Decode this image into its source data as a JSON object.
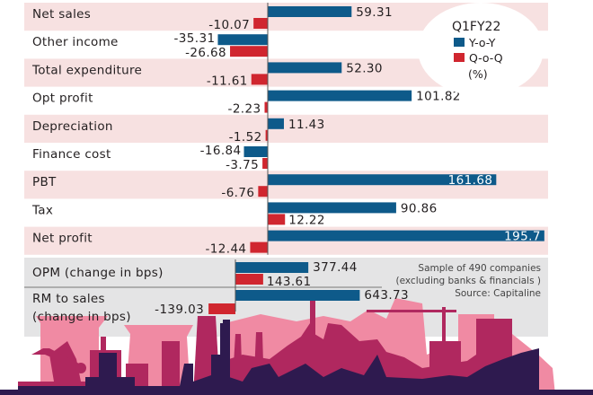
{
  "chart_data": [
    {
      "type": "bar",
      "orientation": "horizontal",
      "title": "Q1FY22",
      "unit_label": "(%)",
      "categories": [
        "Net sales",
        "Other income",
        "Total expenditure",
        "Opt profit",
        "Depreciation",
        "Finance cost",
        "PBT",
        "Tax",
        "Net profit"
      ],
      "series": [
        {
          "name": "Y-o-Y",
          "color": "#0e5a8a",
          "values": [
            59.31,
            -35.31,
            52.3,
            101.82,
            11.43,
            -16.84,
            161.68,
            90.86,
            195.7
          ]
        },
        {
          "name": "Q-o-Q",
          "color": "#d0262f",
          "values": [
            -10.07,
            -26.68,
            -11.61,
            -2.23,
            -1.52,
            -3.75,
            -6.76,
            12.22,
            -12.44
          ]
        }
      ],
      "value_labels": {
        "Y-o-Y": [
          "59.31",
          "-35.31",
          "52.30",
          "101.82",
          "11.43",
          "-16.84",
          "161.68",
          "90.86",
          "195.7"
        ],
        "Q-o-Q": [
          "-10.07",
          "-26.68",
          "-11.61",
          "-2.23",
          "-1.52",
          "-3.75",
          "-6.76",
          "12.22",
          "-12.44"
        ]
      },
      "legend": {
        "position": "top-right",
        "entries": [
          "Y-o-Y",
          "Q-o-Q"
        ]
      },
      "grid": false,
      "xlim": [
        -40,
        200
      ]
    },
    {
      "type": "bar",
      "orientation": "horizontal",
      "categories": [
        "OPM (change in bps)",
        "RM to sales (change in bps)"
      ],
      "category_lines": [
        [
          "OPM (change in bps)"
        ],
        [
          "RM to sales",
          "(change in bps)"
        ]
      ],
      "series": [
        {
          "name": "Y-o-Y",
          "color": "#0e5a8a",
          "values": [
            377.44,
            643.73
          ]
        },
        {
          "name": "Q-o-Q",
          "color": "#d0262f",
          "values": [
            143.61,
            -139.03
          ]
        }
      ],
      "value_labels": {
        "Y-o-Y": [
          "377.44",
          "643.73"
        ],
        "Q-o-Q": [
          "143.61",
          "-139.03"
        ]
      },
      "grid": false,
      "xlim": [
        -150,
        700
      ]
    }
  ],
  "notes": {
    "lines": [
      "Sample of 490 companies",
      "(excluding banks & financials )",
      "Source: Capitaline"
    ]
  },
  "colors": {
    "row_band": "#f7e1e1",
    "panel": "#e4e4e5",
    "skyline_light": "#f08aa3",
    "skyline_mid": "#b0285f",
    "skyline_dark": "#2e1a4f"
  }
}
